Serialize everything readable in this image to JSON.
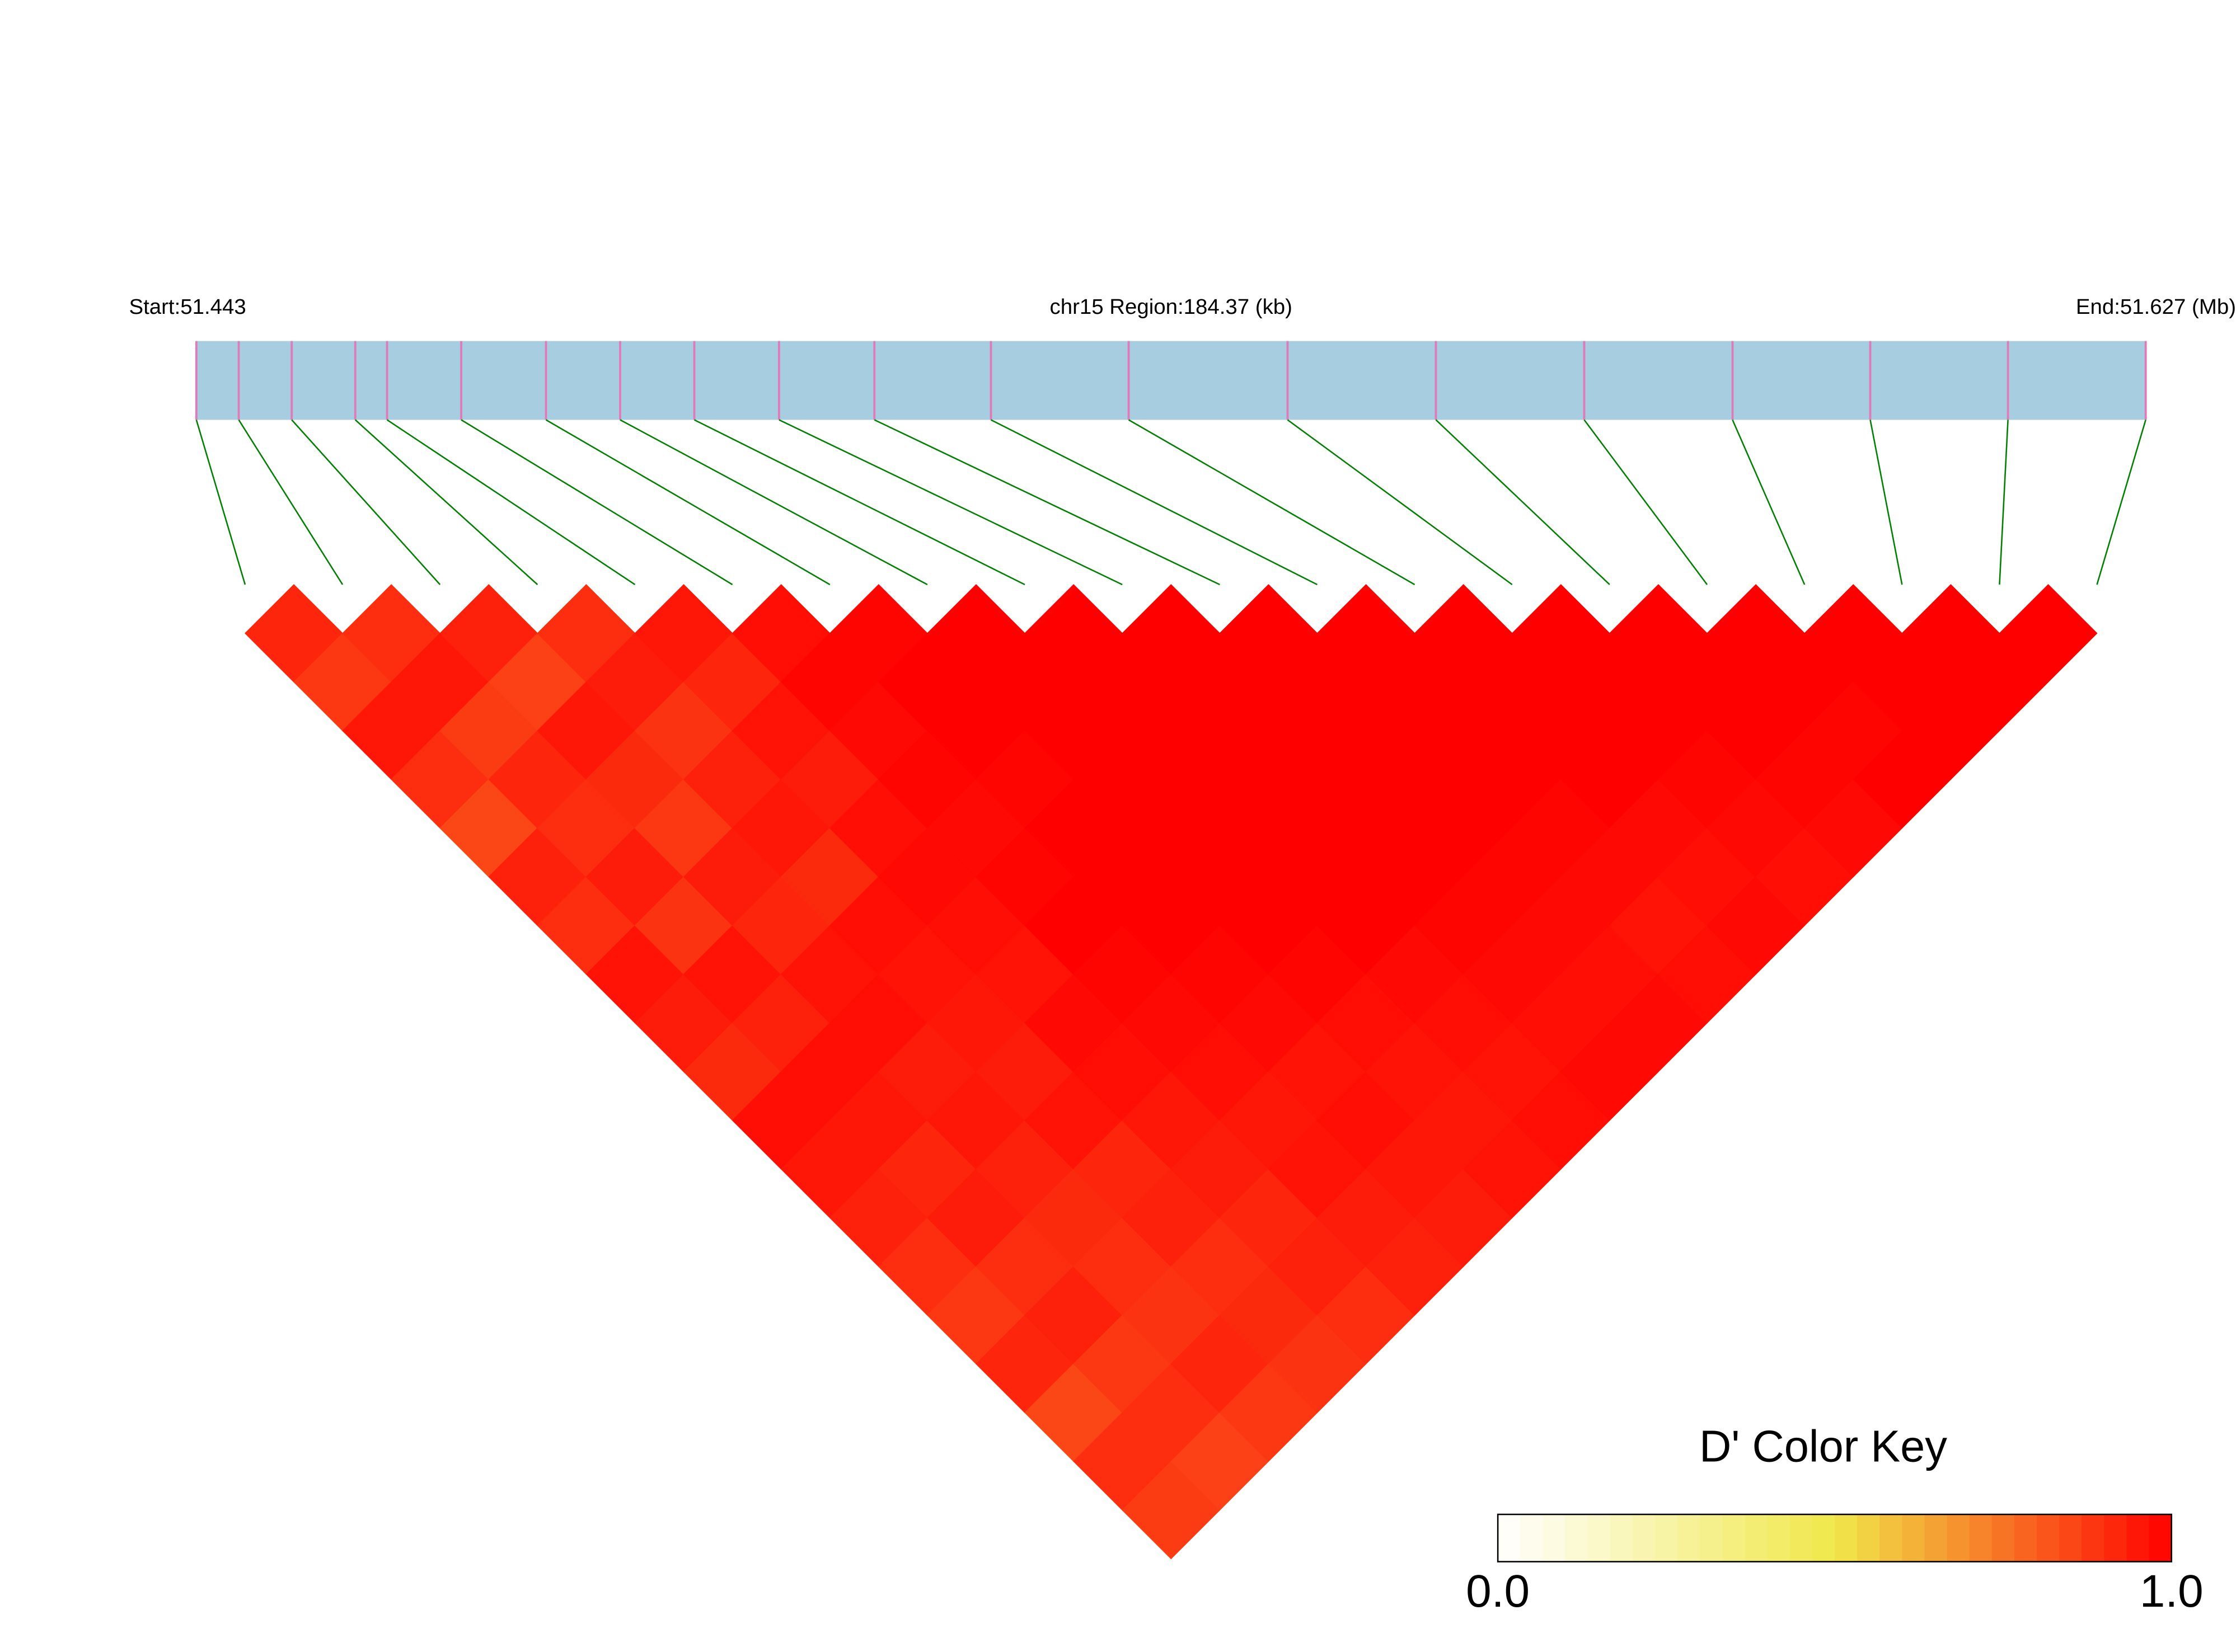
{
  "chart_data": {
    "type": "ldheatmap",
    "title": "chr15 Region:184.37 (kb)",
    "start_label": "Start:51.443",
    "end_label": "End:51.627 (Mb)",
    "xlim": [
      51.443,
      51.627
    ],
    "snp_positions": [
      51.443,
      51.447,
      51.452,
      51.458,
      51.461,
      51.468,
      51.476,
      51.483,
      51.49,
      51.498,
      51.507,
      51.518,
      51.531,
      51.546,
      51.56,
      51.574,
      51.588,
      51.601,
      51.614,
      51.627
    ],
    "dprime": [
      [
        0.92,
        0.88,
        0.95,
        0.9,
        0.85,
        0.93,
        0.9,
        0.96,
        0.94,
        0.91,
        0.97,
        0.95,
        0.93,
        0.9,
        0.88,
        0.92,
        0.85,
        0.9,
        0.87
      ],
      [
        0.9,
        0.95,
        0.87,
        0.92,
        0.9,
        0.94,
        0.89,
        0.96,
        0.93,
        0.97,
        0.95,
        0.92,
        0.94,
        0.9,
        0.93,
        0.88,
        0.9,
        0.86
      ],
      [
        0.93,
        0.86,
        0.95,
        0.91,
        0.88,
        0.94,
        0.92,
        0.96,
        0.97,
        0.94,
        0.95,
        0.93,
        0.91,
        0.9,
        0.89,
        0.92,
        0.88
      ],
      [
        0.9,
        0.94,
        0.89,
        0.93,
        0.95,
        0.91,
        0.97,
        0.96,
        0.95,
        0.94,
        0.96,
        0.92,
        0.93,
        0.9,
        0.91,
        0.89
      ],
      [
        0.95,
        0.92,
        0.96,
        0.94,
        0.97,
        0.98,
        0.97,
        0.96,
        0.98,
        0.97,
        0.95,
        0.94,
        0.92,
        0.93,
        0.9
      ],
      [
        0.97,
        0.99,
        0.98,
        0.99,
        0.98,
        0.99,
        1,
        0.99,
        0.98,
        0.97,
        0.95,
        0.96,
        0.94,
        0.93
      ],
      [
        0.99,
        1,
        1,
        0.99,
        1,
        1,
        1,
        0.99,
        0.98,
        0.96,
        0.97,
        0.95,
        0.94
      ],
      [
        1,
        1,
        1,
        1,
        1,
        1,
        1,
        0.99,
        0.97,
        0.96,
        0.95,
        0.96
      ],
      [
        1,
        1,
        1,
        1,
        1,
        1,
        1,
        0.98,
        0.97,
        0.96,
        0.97
      ],
      [
        1,
        1,
        1,
        1,
        1,
        1,
        0.99,
        0.98,
        0.97,
        0.98
      ],
      [
        1,
        1,
        1,
        1,
        1,
        0.99,
        0.98,
        0.97,
        0.98
      ],
      [
        1,
        1,
        1,
        1,
        0.99,
        0.98,
        0.96,
        0.97
      ],
      [
        1,
        1,
        1,
        1,
        0.98,
        0.97,
        0.98
      ],
      [
        1,
        1,
        1,
        0.99,
        0.98,
        0.97
      ],
      [
        1,
        1,
        1,
        0.99,
        0.98
      ],
      [
        1,
        1,
        0.99,
        1
      ],
      [
        1,
        1,
        1
      ],
      [
        1,
        1
      ],
      [
        1
      ]
    ],
    "color_scale": {
      "title": "D' Color Key",
      "lim": [
        0,
        1
      ],
      "ticks": [
        {
          "value": 0,
          "label": "0.0"
        },
        {
          "value": 1,
          "label": "1.0"
        }
      ],
      "colors": [
        "#ffffff",
        "#f0e84a",
        "#ff0000"
      ]
    }
  }
}
